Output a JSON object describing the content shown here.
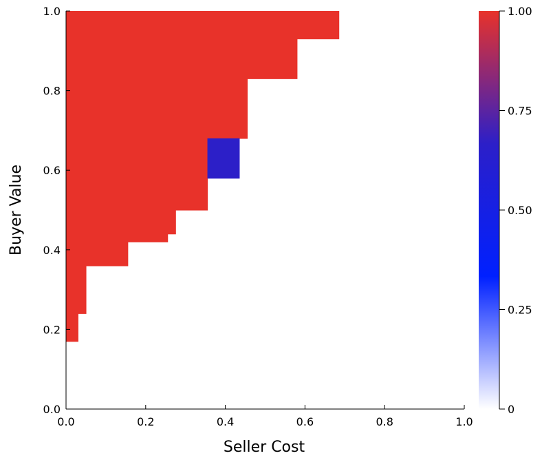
{
  "chart_data": {
    "type": "heatmap",
    "xlabel": "Seller Cost",
    "ylabel": "Buyer Value",
    "xlim": [
      0,
      1
    ],
    "ylim": [
      0,
      1
    ],
    "x_ticks": [
      "0.0",
      "0.2",
      "0.4",
      "0.6",
      "0.8",
      "1.0"
    ],
    "y_ticks": [
      "0.0",
      "0.2",
      "0.4",
      "0.6",
      "0.8",
      "1.0"
    ],
    "grid": false,
    "colorbar": {
      "range": [
        0,
        1
      ],
      "tick_values": [
        0,
        0.25,
        0.5,
        0.75,
        1.0
      ],
      "tick_labels": [
        "0",
        "0.25",
        "0.50",
        "0.75",
        "1.00"
      ],
      "gradient_colors": [
        "#ffffff",
        "#0020ff",
        "#2c1fc8",
        "#e8322a"
      ]
    },
    "regions": [
      {
        "x": [
          0.0,
          0.03
        ],
        "y": [
          0.17,
          0.24
        ],
        "value": 1.0
      },
      {
        "x": [
          0.0,
          0.05
        ],
        "y": [
          0.24,
          0.36
        ],
        "value": 1.0
      },
      {
        "x": [
          0.0,
          0.155
        ],
        "y": [
          0.36,
          0.42
        ],
        "value": 1.0
      },
      {
        "x": [
          0.0,
          0.255
        ],
        "y": [
          0.42,
          0.44
        ],
        "value": 1.0
      },
      {
        "x": [
          0.0,
          0.275
        ],
        "y": [
          0.44,
          0.5
        ],
        "value": 1.0
      },
      {
        "x": [
          0.0,
          0.355
        ],
        "y": [
          0.5,
          0.68
        ],
        "value": 1.0
      },
      {
        "x": [
          0.0,
          0.455
        ],
        "y": [
          0.68,
          0.83
        ],
        "value": 1.0
      },
      {
        "x": [
          0.0,
          0.58
        ],
        "y": [
          0.83,
          0.93
        ],
        "value": 1.0
      },
      {
        "x": [
          0.0,
          0.685
        ],
        "y": [
          0.93,
          1.0
        ],
        "value": 1.0
      },
      {
        "x": [
          0.355,
          0.435
        ],
        "y": [
          0.58,
          0.68
        ],
        "value": 0.7
      }
    ],
    "colors": {
      "high": "#e8322a",
      "mid": "#2c1fc8",
      "background": "#ffffff"
    }
  }
}
